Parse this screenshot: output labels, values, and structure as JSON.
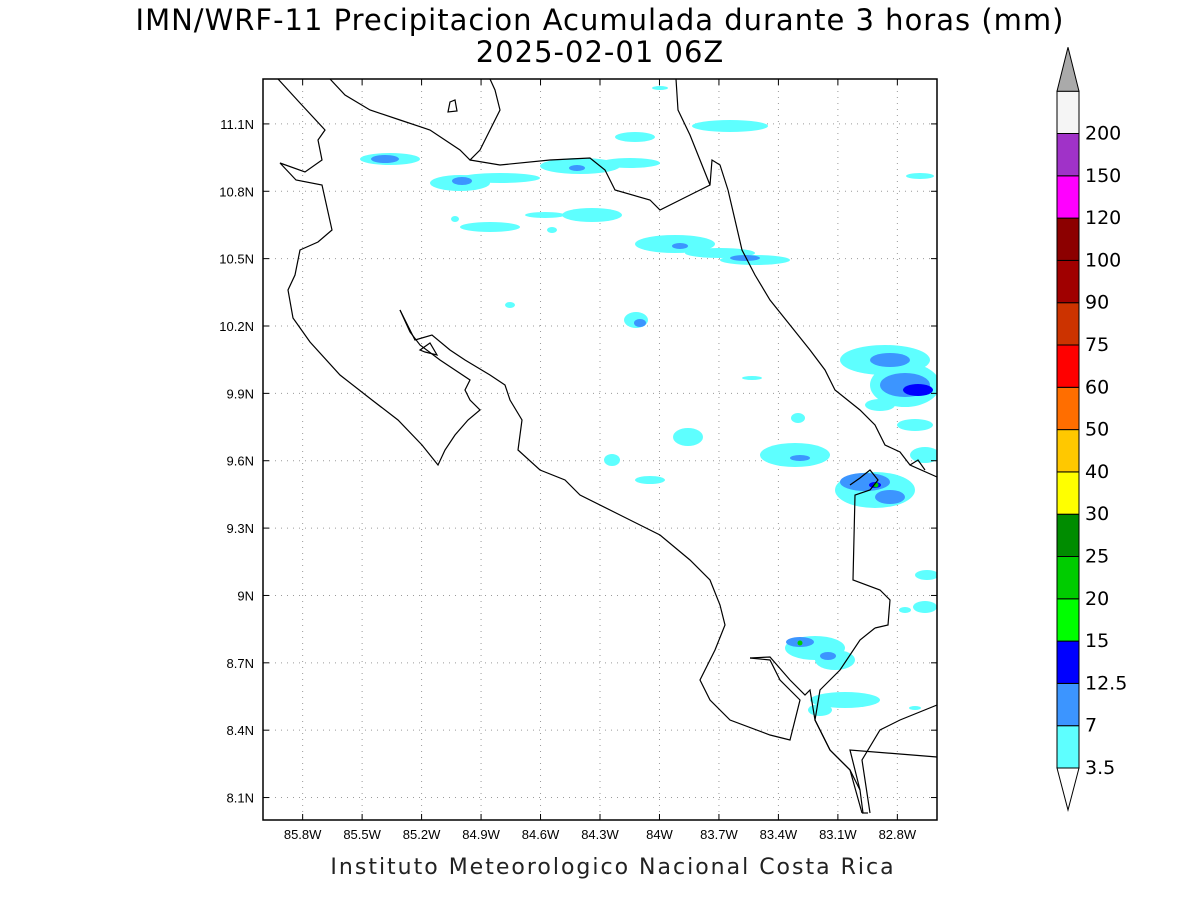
{
  "title": {
    "line1": "IMN/WRF-11 Precipitacion Acumulada durante 3 horas (mm)",
    "line2": "2025-02-01 06Z"
  },
  "credit": "Instituto Meteorologico Nacional Costa Rica",
  "map": {
    "lon_range": [
      -86.0,
      -82.6
    ],
    "lat_range": [
      8.0,
      11.3
    ],
    "lon_ticks": [
      {
        "value": -85.8,
        "label": "85.8W"
      },
      {
        "value": -85.5,
        "label": "85.5W"
      },
      {
        "value": -85.2,
        "label": "85.2W"
      },
      {
        "value": -84.9,
        "label": "84.9W"
      },
      {
        "value": -84.6,
        "label": "84.6W"
      },
      {
        "value": -84.3,
        "label": "84.3W"
      },
      {
        "value": -84.0,
        "label": "84W"
      },
      {
        "value": -83.7,
        "label": "83.7W"
      },
      {
        "value": -83.4,
        "label": "83.4W"
      },
      {
        "value": -83.1,
        "label": "83.1W"
      },
      {
        "value": -82.8,
        "label": "82.8W"
      }
    ],
    "lat_ticks": [
      {
        "value": 8.1,
        "label": "8.1N"
      },
      {
        "value": 8.4,
        "label": "8.4N"
      },
      {
        "value": 8.7,
        "label": "8.7N"
      },
      {
        "value": 9.0,
        "label": "9N"
      },
      {
        "value": 9.3,
        "label": "9.3N"
      },
      {
        "value": 9.6,
        "label": "9.6N"
      },
      {
        "value": 9.9,
        "label": "9.9N"
      },
      {
        "value": 10.2,
        "label": "10.2N"
      },
      {
        "value": 10.5,
        "label": "10.5N"
      },
      {
        "value": 10.8,
        "label": "10.8N"
      },
      {
        "value": 11.1,
        "label": "11.1N"
      }
    ],
    "grid": true
  },
  "colorbar": {
    "levels": [
      {
        "label": "3.5",
        "color": "#5effff"
      },
      {
        "label": "7",
        "color": "#3c95ff"
      },
      {
        "label": "12.5",
        "color": "#0000ff"
      },
      {
        "label": "15",
        "color": "#00ff00"
      },
      {
        "label": "20",
        "color": "#00cc00"
      },
      {
        "label": "25",
        "color": "#008c00"
      },
      {
        "label": "30",
        "color": "#ffff00"
      },
      {
        "label": "40",
        "color": "#ffc800"
      },
      {
        "label": "50",
        "color": "#ff6e00"
      },
      {
        "label": "60",
        "color": "#ff0000"
      },
      {
        "label": "75",
        "color": "#cc3300"
      },
      {
        "label": "90",
        "color": "#a00000"
      },
      {
        "label": "100",
        "color": "#8c0000"
      },
      {
        "label": "120",
        "color": "#ff00ff"
      },
      {
        "label": "150",
        "color": "#a032c8"
      },
      {
        "label": "200",
        "color": "#f5f5f5"
      }
    ],
    "over_color": "#aaaaaa",
    "under_color": "#ffffff"
  }
}
